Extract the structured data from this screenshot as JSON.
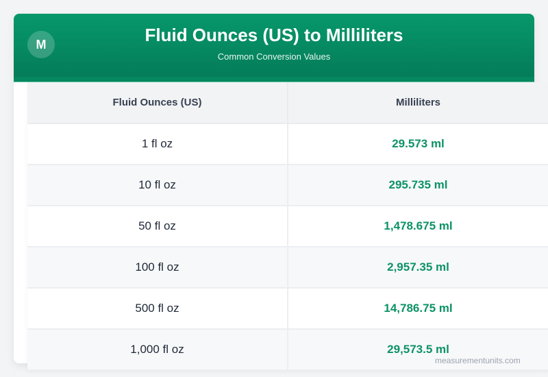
{
  "header": {
    "logo_letter": "M",
    "title": "Fluid Ounces (US) to Milliliters",
    "subtitle": "Common Conversion Values"
  },
  "table": {
    "columns": [
      "Fluid Ounces (US)",
      "Milliliters"
    ],
    "rows": [
      {
        "oz": "1 fl oz",
        "ml": "29.573 ml"
      },
      {
        "oz": "10 fl oz",
        "ml": "295.735 ml"
      },
      {
        "oz": "50 fl oz",
        "ml": "1,478.675 ml"
      },
      {
        "oz": "100 fl oz",
        "ml": "2,957.35 ml"
      },
      {
        "oz": "500 fl oz",
        "ml": "14,786.75 ml"
      },
      {
        "oz": "1,000 fl oz",
        "ml": "29,573.5 ml"
      }
    ]
  },
  "footer": {
    "watermark": "measurementunits.com"
  },
  "colors": {
    "header_green": "#07986a",
    "value_green": "#0c9264",
    "page_bg": "#f3f4f6"
  }
}
